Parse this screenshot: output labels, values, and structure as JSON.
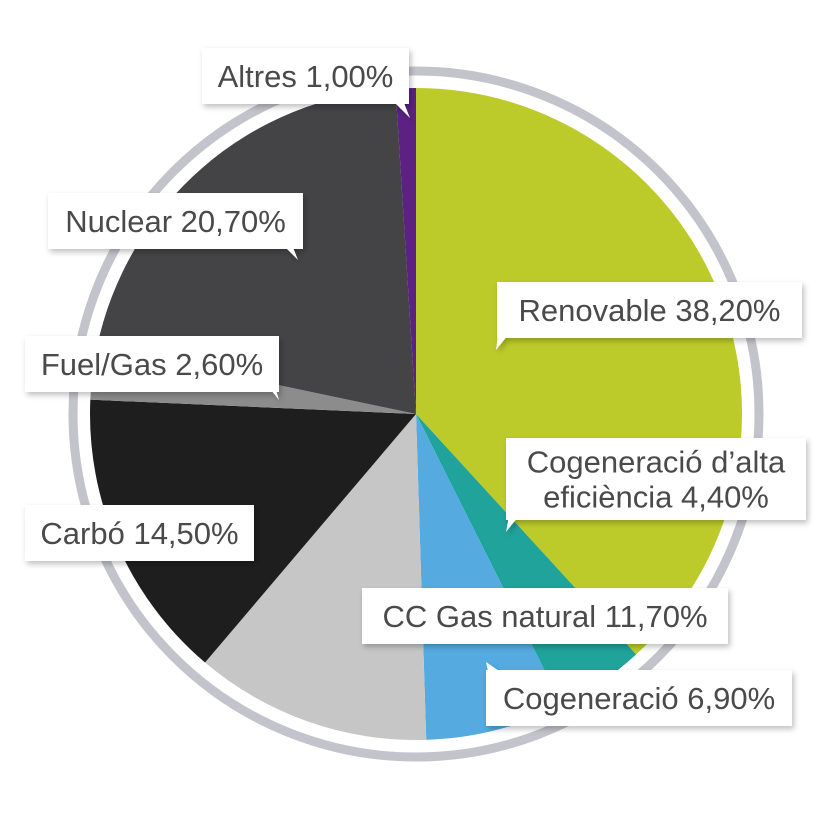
{
  "chart_data": {
    "type": "pie",
    "title": "",
    "start_angle_deg": 0,
    "direction": "clockwise",
    "slices": [
      {
        "label": "Renovable 38,20%",
        "value": 38.2,
        "color": "#bccb2a"
      },
      {
        "label": "Cogeneració d’alta eficiència 4,40%",
        "lines": [
          "Cogeneració d’alta",
          "eficiència 4,40%"
        ],
        "value": 4.4,
        "color": "#1fa39b"
      },
      {
        "label": "Cogeneració 6,90%",
        "value": 6.9,
        "color": "#55abe0"
      },
      {
        "label": "CC Gas natural 11,70%",
        "value": 11.7,
        "color": "#c6c6c6"
      },
      {
        "label": "Carbó 14,50%",
        "value": 14.5,
        "color": "#1e1e1e"
      },
      {
        "label": "Fuel/Gas 2,60%",
        "value": 2.6,
        "color": "#8c8c8c"
      },
      {
        "label": "Nuclear 20,70%",
        "value": 20.7,
        "color": "#444446"
      },
      {
        "label": "Altres 1,00%",
        "value": 1.0,
        "color": "#5c2182"
      }
    ],
    "ring_color": "#c3c3cb",
    "legend": "none"
  }
}
